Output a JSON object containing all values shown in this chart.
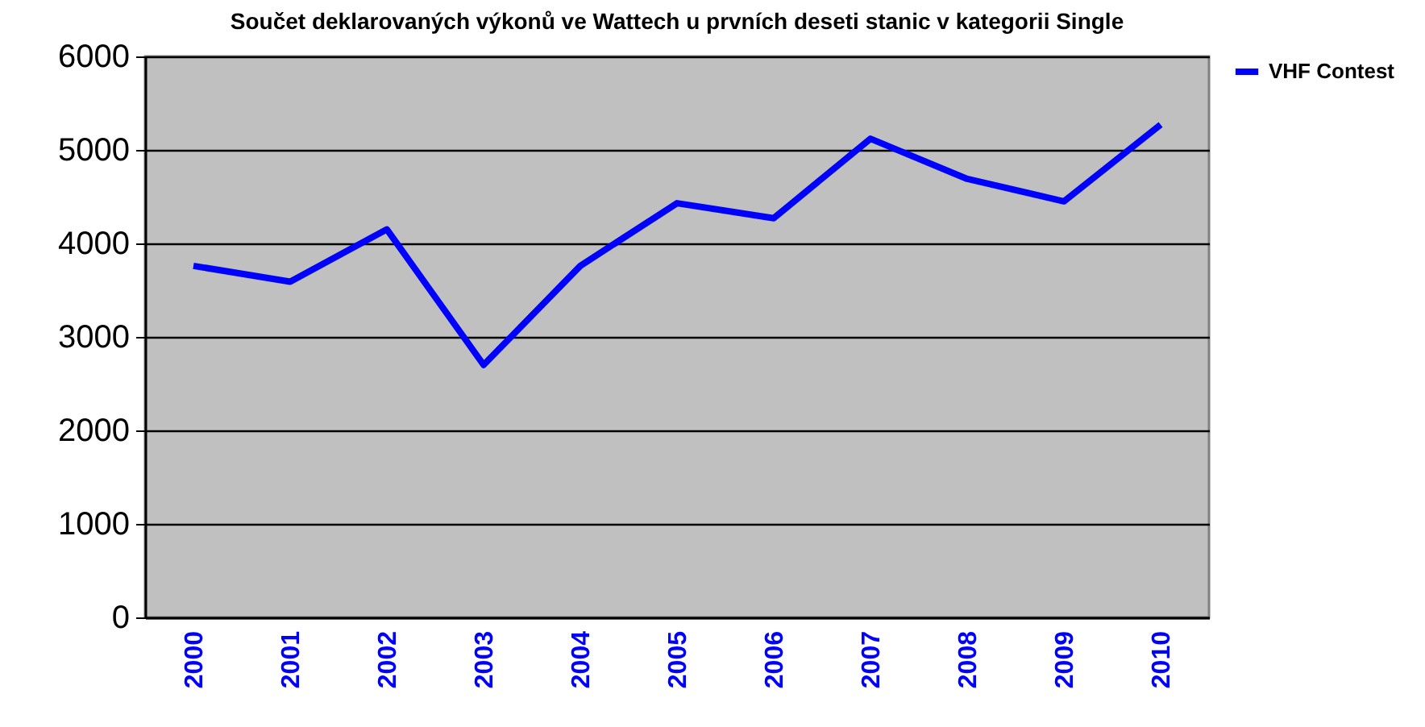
{
  "chart_data": {
    "type": "line",
    "title": "Součet deklarovaných výkonů ve Wattech u prvních deseti stanic v kategorii Single",
    "categories": [
      "2000",
      "2001",
      "2002",
      "2003",
      "2004",
      "2005",
      "2006",
      "2007",
      "2008",
      "2009",
      "2010"
    ],
    "series": [
      {
        "name": "VHF Contest",
        "color": "#0000ff",
        "values": [
          3760,
          3590,
          4150,
          2700,
          3760,
          4430,
          4270,
          5120,
          4690,
          4450,
          5270
        ]
      }
    ],
    "ylim": [
      0,
      6000
    ],
    "yticks": [
      0,
      1000,
      2000,
      3000,
      4000,
      5000,
      6000
    ],
    "grid": "y",
    "legend": "right",
    "marker": "none",
    "line_style": "solid"
  }
}
